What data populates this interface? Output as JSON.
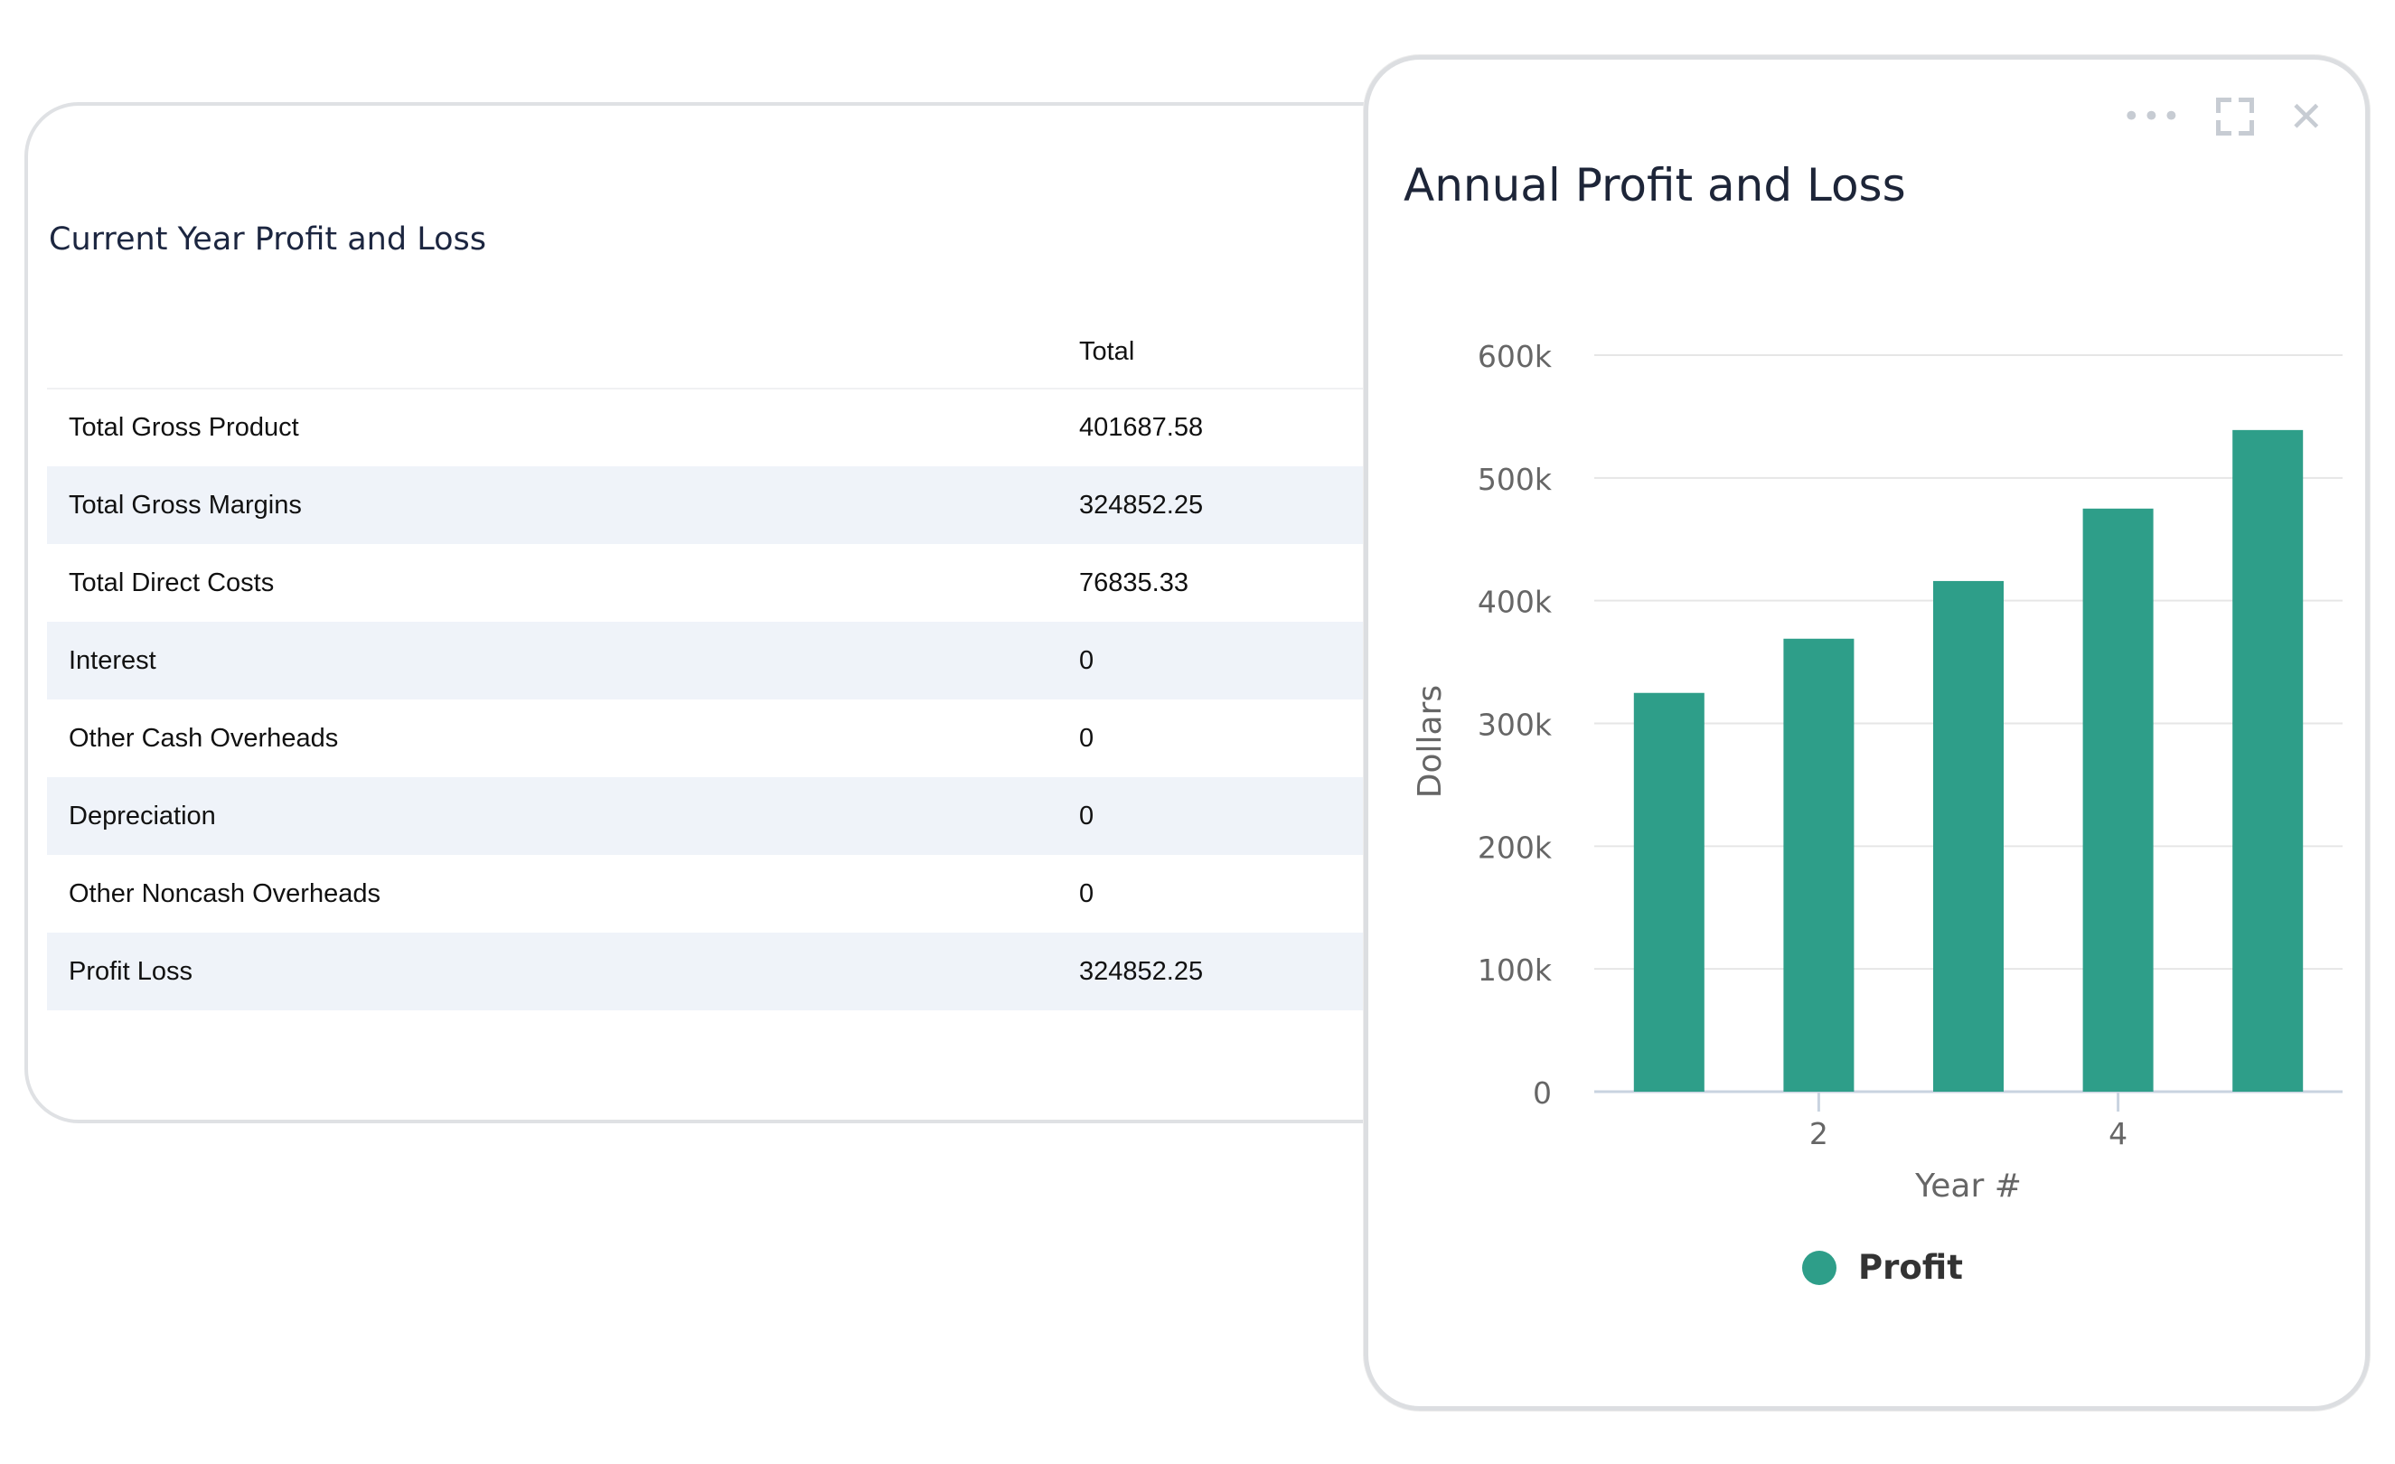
{
  "table_card": {
    "title": "Current Year Profit and Loss",
    "columns": [
      "",
      "Total"
    ],
    "rows": [
      {
        "label": "Total Gross Product",
        "total": "401687.58"
      },
      {
        "label": "Total Gross Margins",
        "total": "324852.25"
      },
      {
        "label": "Total Direct Costs",
        "total": "76835.33"
      },
      {
        "label": "Interest",
        "total": "0"
      },
      {
        "label": "Other Cash Overheads",
        "total": "0"
      },
      {
        "label": "Depreciation",
        "total": "0"
      },
      {
        "label": "Other Noncash Overheads",
        "total": "0"
      },
      {
        "label": "Profit Loss",
        "total": "324852.25"
      }
    ]
  },
  "chart_card": {
    "title": "Annual Profit and Loss",
    "tools": {
      "more_icon": "more-icon",
      "expand_icon": "expand-icon",
      "close_icon": "close-icon"
    }
  },
  "colors": {
    "bar": "#2e9e89",
    "grid": "#e6e6e6",
    "axis_text": "#666666"
  },
  "chart_data": {
    "type": "bar",
    "title": "Annual Profit and Loss",
    "xlabel": "Year #",
    "ylabel": "Dollars",
    "categories": [
      1,
      2,
      3,
      4,
      5
    ],
    "x_tick_labels_shown": [
      "2",
      "4"
    ],
    "series": [
      {
        "name": "Profit",
        "values": [
          324852,
          369000,
          416000,
          475000,
          539000
        ]
      }
    ],
    "ylim": [
      0,
      600000
    ],
    "y_ticks": [
      "0",
      "100k",
      "200k",
      "300k",
      "400k",
      "500k",
      "600k"
    ],
    "grid": true,
    "legend": "bottom"
  }
}
